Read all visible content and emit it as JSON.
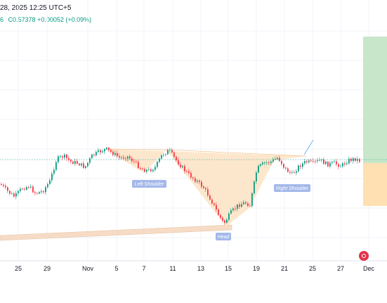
{
  "header": {
    "title_fragment": "28, 2025 12:25 UTC+5",
    "ohlc_prefix": "6",
    "close_label": "C0.57378",
    "change_text": "+0.00052 (+0.09%)"
  },
  "annotations": {
    "left_shoulder": "Left Shoulder",
    "head": "Head",
    "right_shoulder": "Right Shoulder"
  },
  "x_axis": {
    "ticks": [
      "25",
      "29",
      "Nov",
      "5",
      "7",
      "11",
      "13",
      "15",
      "19",
      "21",
      "25",
      "27",
      "Dec"
    ]
  },
  "icons": {
    "replay": "record-icon"
  },
  "colors": {
    "up": "#089981",
    "down": "#f23645",
    "pattern_fill": "#fde3c3",
    "profit_zone": "#c8e6c9",
    "loss_zone": "#ffe0b2",
    "price_line": "#4db6ac",
    "support_fill": "#f6dcc6"
  },
  "chart_data": {
    "type": "candlestick",
    "pattern": "Inverse Head and Shoulders",
    "labels": [
      "Left Shoulder",
      "Head",
      "Right Shoulder"
    ],
    "x_ticks": [
      "25",
      "29",
      "Nov",
      "5",
      "7",
      "11",
      "13",
      "15",
      "19",
      "21",
      "25",
      "27",
      "Dec"
    ],
    "last_close": 0.57378,
    "change": 0.00052,
    "change_pct": 0.09
  }
}
